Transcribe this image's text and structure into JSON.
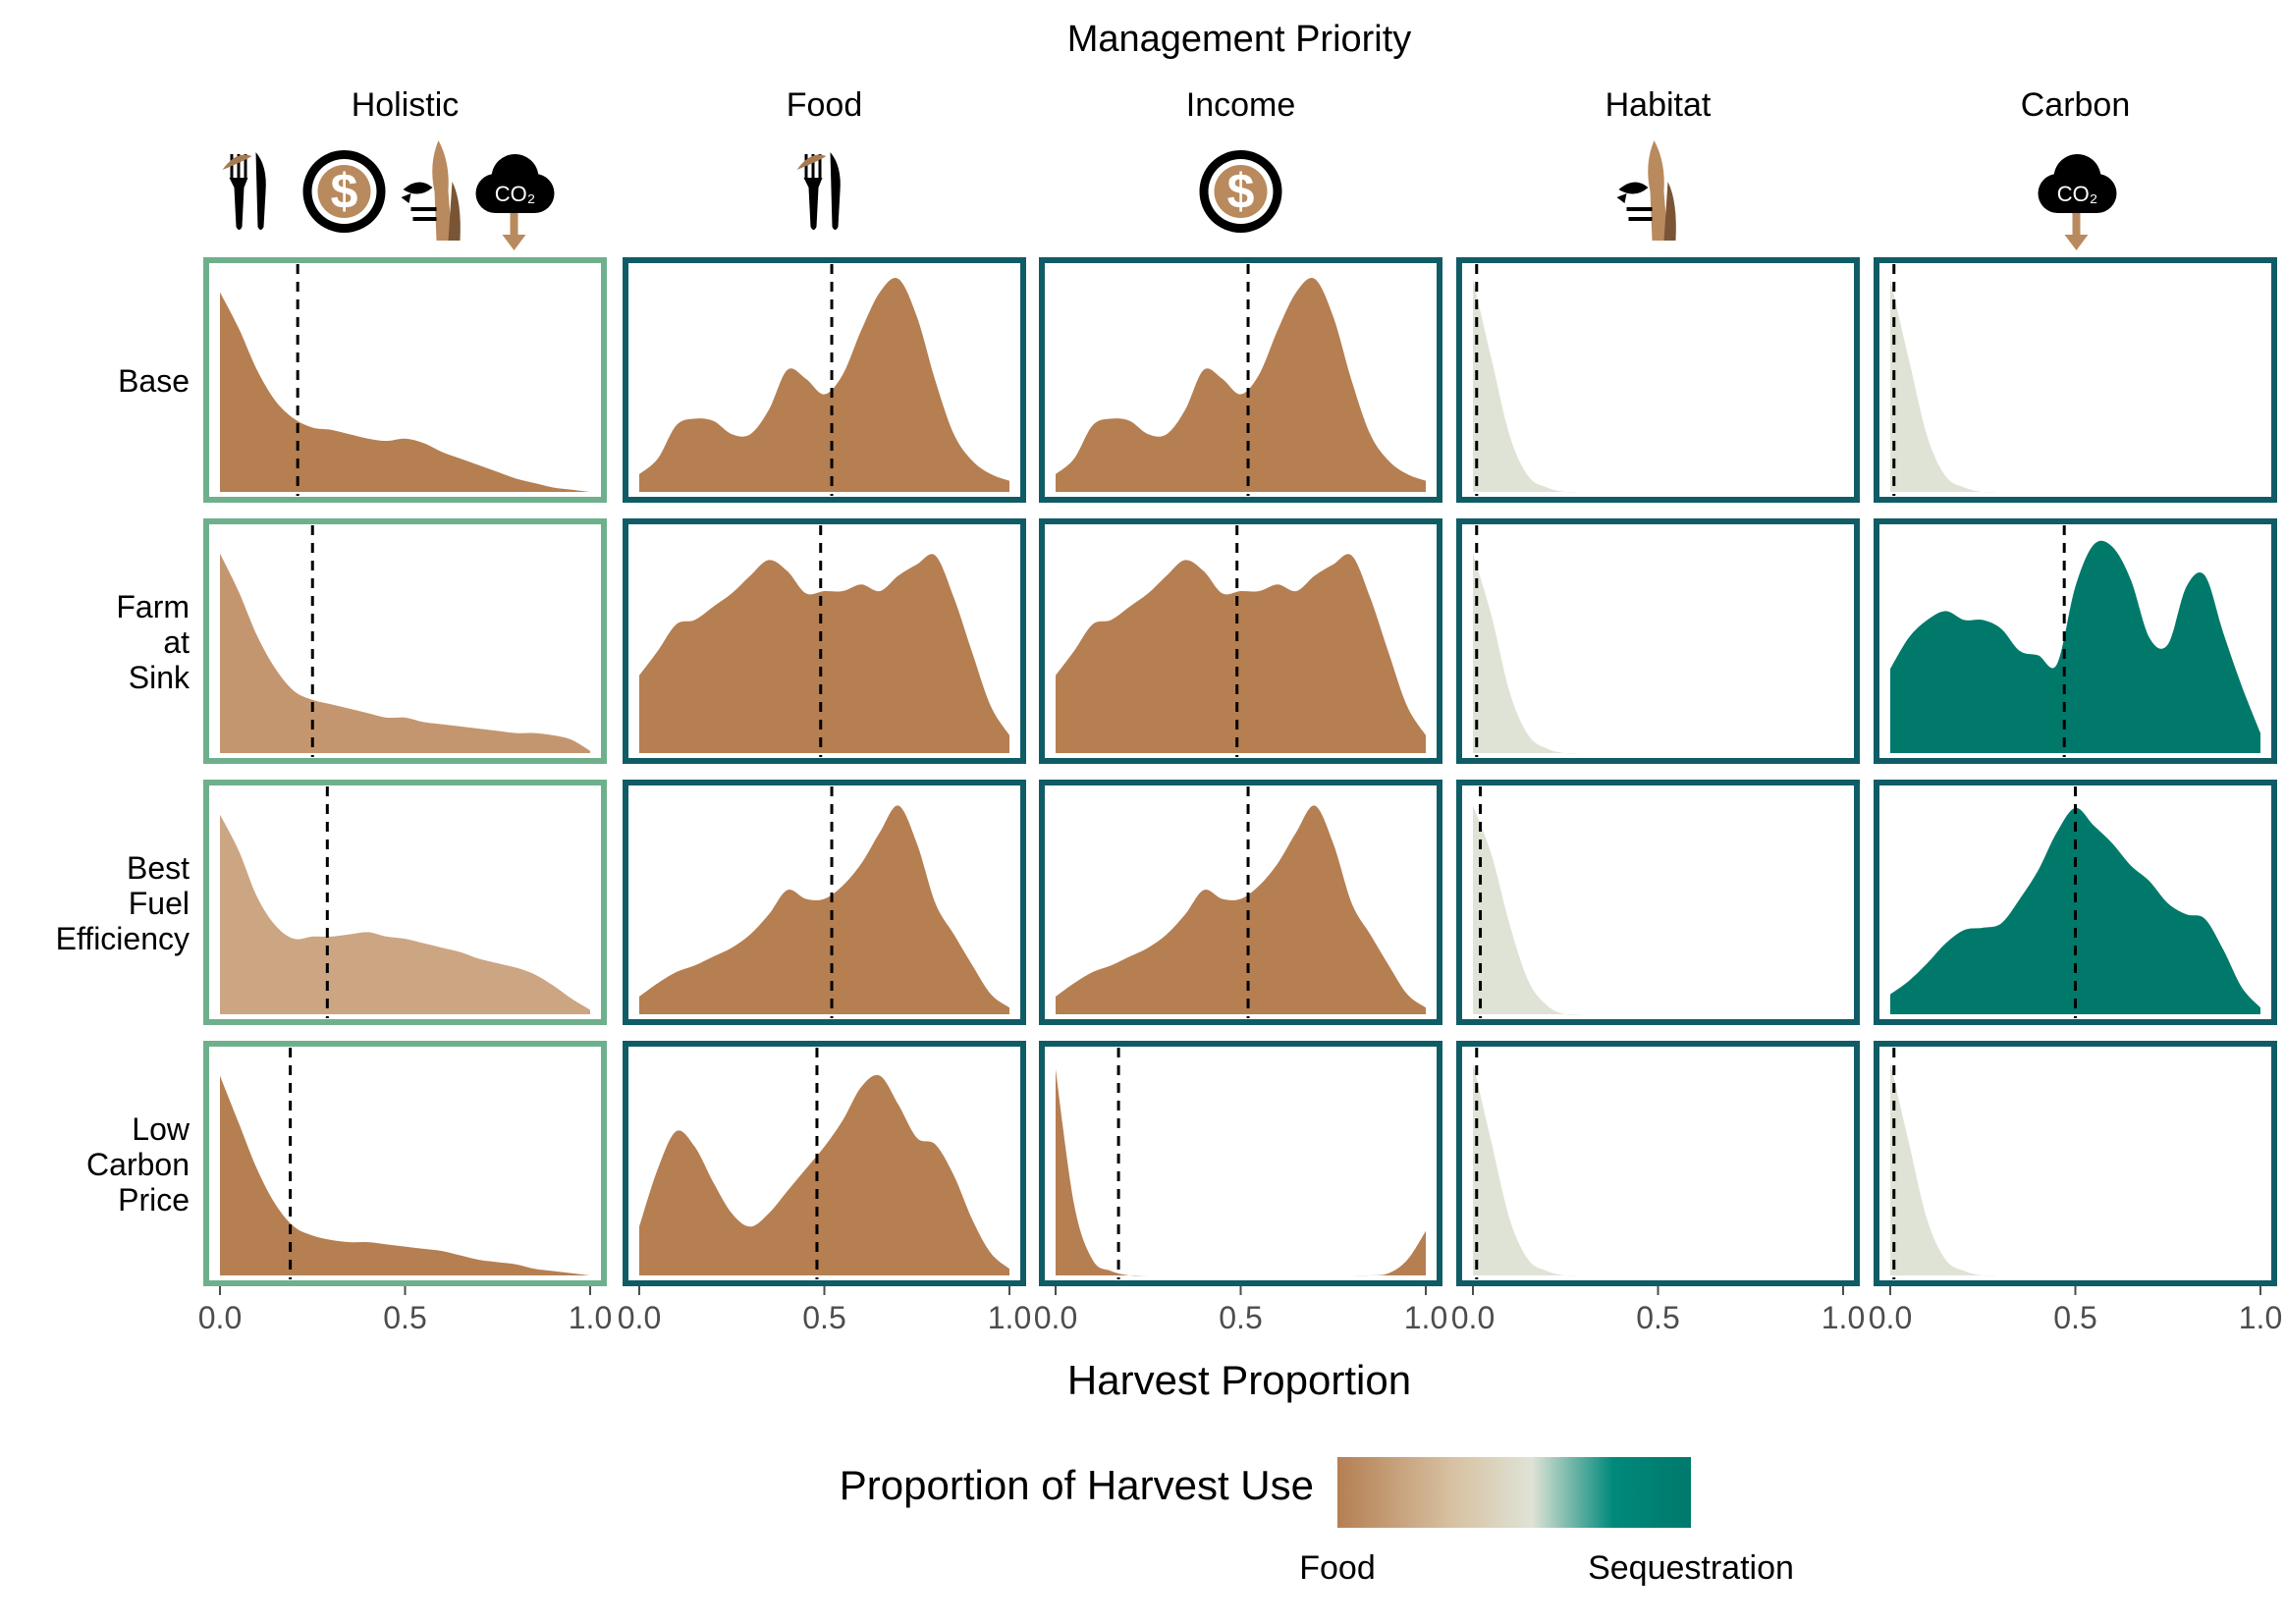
{
  "chart_data": {
    "type": "area",
    "facet_title": "Management Priority",
    "columns": [
      "Holistic",
      "Food",
      "Income",
      "Habitat",
      "Carbon"
    ],
    "rows": [
      [
        "Base"
      ],
      [
        "Farm",
        "at",
        "Sink"
      ],
      [
        "Best",
        "Fuel",
        "Efficiency"
      ],
      [
        "Low",
        "Carbon",
        "Price"
      ]
    ],
    "xlabel": "Harvest Proportion",
    "xlim": [
      0,
      1
    ],
    "x_ticks": [
      "0.0",
      "0.5",
      "1.0"
    ],
    "legend": {
      "title": "Proportion of Harvest Use",
      "low_label": "Food",
      "high_label": "Sequestration",
      "colors": [
        "#b57f52",
        "#d7c2a3",
        "#dfe3d5",
        "#00897b",
        "#00796b"
      ]
    },
    "border_colors": {
      "holistic": "#6fb08c",
      "other": "#0f5c66"
    },
    "icons": [
      [
        "food-icon",
        "income-icon",
        "habitat-icon",
        "carbon-icon"
      ],
      [
        "food-icon"
      ],
      [
        "income-icon"
      ],
      [
        "habitat-icon"
      ],
      [
        "carbon-icon"
      ]
    ],
    "x": [
      0.0,
      0.05,
      0.1,
      0.15,
      0.2,
      0.25,
      0.3,
      0.35,
      0.4,
      0.45,
      0.5,
      0.55,
      0.6,
      0.65,
      0.7,
      0.75,
      0.8,
      0.85,
      0.9,
      0.95,
      1.0
    ],
    "panels": [
      {
        "row": 0,
        "col": 0,
        "fill": "#b57f52",
        "mean": 0.21,
        "density": [
          0.9,
          0.74,
          0.55,
          0.41,
          0.33,
          0.29,
          0.28,
          0.26,
          0.24,
          0.23,
          0.24,
          0.22,
          0.18,
          0.15,
          0.12,
          0.09,
          0.06,
          0.04,
          0.02,
          0.01,
          0.0
        ]
      },
      {
        "row": 0,
        "col": 1,
        "fill": "#b57f52",
        "mean": 0.52,
        "density": [
          0.08,
          0.15,
          0.3,
          0.33,
          0.32,
          0.26,
          0.26,
          0.37,
          0.55,
          0.51,
          0.44,
          0.53,
          0.73,
          0.9,
          0.96,
          0.79,
          0.5,
          0.26,
          0.14,
          0.08,
          0.05
        ]
      },
      {
        "row": 0,
        "col": 2,
        "fill": "#b57f52",
        "mean": 0.52,
        "density": [
          0.08,
          0.15,
          0.3,
          0.33,
          0.32,
          0.26,
          0.26,
          0.37,
          0.55,
          0.51,
          0.44,
          0.53,
          0.73,
          0.9,
          0.96,
          0.79,
          0.5,
          0.26,
          0.14,
          0.08,
          0.05
        ]
      },
      {
        "row": 0,
        "col": 3,
        "fill": "#dfe3d5",
        "mean": 0.01,
        "density": [
          0.96,
          0.6,
          0.25,
          0.07,
          0.02,
          0.0,
          0.0,
          0.0,
          0.0,
          0.0,
          0.0,
          0.0,
          0.0,
          0.0,
          0.0,
          0.0,
          0.0,
          0.0,
          0.0,
          0.0,
          0.0
        ]
      },
      {
        "row": 0,
        "col": 4,
        "fill": "#dfe3d5",
        "mean": 0.01,
        "density": [
          0.96,
          0.6,
          0.25,
          0.07,
          0.02,
          0.0,
          0.0,
          0.0,
          0.0,
          0.0,
          0.0,
          0.0,
          0.0,
          0.0,
          0.0,
          0.0,
          0.0,
          0.0,
          0.0,
          0.0,
          0.0
        ]
      },
      {
        "row": 1,
        "col": 0,
        "fill": "#c49670",
        "mean": 0.25,
        "density": [
          0.9,
          0.73,
          0.53,
          0.38,
          0.28,
          0.24,
          0.22,
          0.2,
          0.18,
          0.16,
          0.16,
          0.14,
          0.13,
          0.12,
          0.11,
          0.1,
          0.09,
          0.09,
          0.08,
          0.06,
          0.01
        ]
      },
      {
        "row": 1,
        "col": 1,
        "fill": "#b57f52",
        "mean": 0.49,
        "density": [
          0.35,
          0.46,
          0.58,
          0.6,
          0.66,
          0.72,
          0.8,
          0.87,
          0.82,
          0.72,
          0.73,
          0.73,
          0.76,
          0.73,
          0.8,
          0.85,
          0.89,
          0.7,
          0.45,
          0.21,
          0.08
        ]
      },
      {
        "row": 1,
        "col": 2,
        "fill": "#b57f52",
        "mean": 0.49,
        "density": [
          0.35,
          0.46,
          0.58,
          0.6,
          0.66,
          0.72,
          0.8,
          0.87,
          0.82,
          0.72,
          0.73,
          0.73,
          0.76,
          0.73,
          0.8,
          0.85,
          0.89,
          0.7,
          0.45,
          0.21,
          0.08
        ]
      },
      {
        "row": 1,
        "col": 3,
        "fill": "#dfe3d5",
        "mean": 0.01,
        "density": [
          0.9,
          0.62,
          0.27,
          0.08,
          0.02,
          0.0,
          0.0,
          0.0,
          0.0,
          0.0,
          0.0,
          0.0,
          0.0,
          0.0,
          0.0,
          0.0,
          0.0,
          0.0,
          0.0,
          0.0,
          0.0
        ]
      },
      {
        "row": 1,
        "col": 4,
        "fill": "#00796b",
        "mean": 0.47,
        "density": [
          0.38,
          0.52,
          0.6,
          0.64,
          0.6,
          0.6,
          0.56,
          0.46,
          0.44,
          0.4,
          0.75,
          0.94,
          0.93,
          0.78,
          0.52,
          0.49,
          0.75,
          0.8,
          0.54,
          0.3,
          0.09
        ]
      },
      {
        "row": 2,
        "col": 0,
        "fill": "#cca583",
        "mean": 0.29,
        "density": [
          0.9,
          0.74,
          0.53,
          0.4,
          0.34,
          0.35,
          0.35,
          0.36,
          0.37,
          0.35,
          0.34,
          0.32,
          0.3,
          0.28,
          0.25,
          0.23,
          0.21,
          0.18,
          0.13,
          0.07,
          0.02
        ]
      },
      {
        "row": 2,
        "col": 1,
        "fill": "#b57f52",
        "mean": 0.52,
        "density": [
          0.08,
          0.14,
          0.19,
          0.22,
          0.26,
          0.3,
          0.36,
          0.45,
          0.56,
          0.52,
          0.52,
          0.58,
          0.68,
          0.82,
          0.94,
          0.77,
          0.5,
          0.36,
          0.22,
          0.09,
          0.03
        ]
      },
      {
        "row": 2,
        "col": 2,
        "fill": "#b57f52",
        "mean": 0.52,
        "density": [
          0.08,
          0.14,
          0.19,
          0.22,
          0.26,
          0.3,
          0.36,
          0.45,
          0.56,
          0.52,
          0.52,
          0.58,
          0.68,
          0.82,
          0.94,
          0.77,
          0.5,
          0.36,
          0.22,
          0.09,
          0.03
        ]
      },
      {
        "row": 2,
        "col": 3,
        "fill": "#dfe3d5",
        "mean": 0.02,
        "density": [
          0.94,
          0.72,
          0.4,
          0.15,
          0.04,
          0.0,
          0.0,
          0.0,
          0.0,
          0.0,
          0.0,
          0.0,
          0.0,
          0.0,
          0.0,
          0.0,
          0.0,
          0.0,
          0.0,
          0.0,
          0.0
        ]
      },
      {
        "row": 2,
        "col": 4,
        "fill": "#00796b",
        "mean": 0.5,
        "density": [
          0.09,
          0.15,
          0.23,
          0.32,
          0.38,
          0.39,
          0.41,
          0.52,
          0.65,
          0.82,
          0.93,
          0.85,
          0.77,
          0.67,
          0.6,
          0.5,
          0.45,
          0.43,
          0.29,
          0.12,
          0.03
        ]
      },
      {
        "row": 3,
        "col": 0,
        "fill": "#b57f52",
        "mean": 0.19,
        "density": [
          0.9,
          0.69,
          0.48,
          0.32,
          0.22,
          0.18,
          0.16,
          0.15,
          0.15,
          0.14,
          0.13,
          0.12,
          0.11,
          0.09,
          0.07,
          0.06,
          0.05,
          0.03,
          0.02,
          0.01,
          0.0
        ]
      },
      {
        "row": 3,
        "col": 1,
        "fill": "#b57f52",
        "mean": 0.48,
        "density": [
          0.22,
          0.48,
          0.65,
          0.58,
          0.42,
          0.28,
          0.22,
          0.28,
          0.38,
          0.48,
          0.58,
          0.7,
          0.85,
          0.9,
          0.77,
          0.62,
          0.59,
          0.45,
          0.25,
          0.1,
          0.03
        ]
      },
      {
        "row": 3,
        "col": 2,
        "fill": "#b57f52",
        "mean": 0.17,
        "density": [
          0.93,
          0.32,
          0.07,
          0.02,
          0.0,
          0.0,
          0.0,
          0.0,
          0.0,
          0.0,
          0.0,
          0.0,
          0.0,
          0.0,
          0.0,
          0.0,
          0.0,
          0.0,
          0.01,
          0.07,
          0.2
        ]
      },
      {
        "row": 3,
        "col": 3,
        "fill": "#dfe3d5",
        "mean": 0.01,
        "density": [
          0.96,
          0.6,
          0.25,
          0.07,
          0.02,
          0.0,
          0.0,
          0.0,
          0.0,
          0.0,
          0.0,
          0.0,
          0.0,
          0.0,
          0.0,
          0.0,
          0.0,
          0.0,
          0.0,
          0.0,
          0.0
        ]
      },
      {
        "row": 3,
        "col": 4,
        "fill": "#dfe3d5",
        "mean": 0.01,
        "density": [
          0.96,
          0.6,
          0.25,
          0.07,
          0.02,
          0.0,
          0.0,
          0.0,
          0.0,
          0.0,
          0.0,
          0.0,
          0.0,
          0.0,
          0.0,
          0.0,
          0.0,
          0.0,
          0.0,
          0.0,
          0.0
        ]
      }
    ]
  }
}
